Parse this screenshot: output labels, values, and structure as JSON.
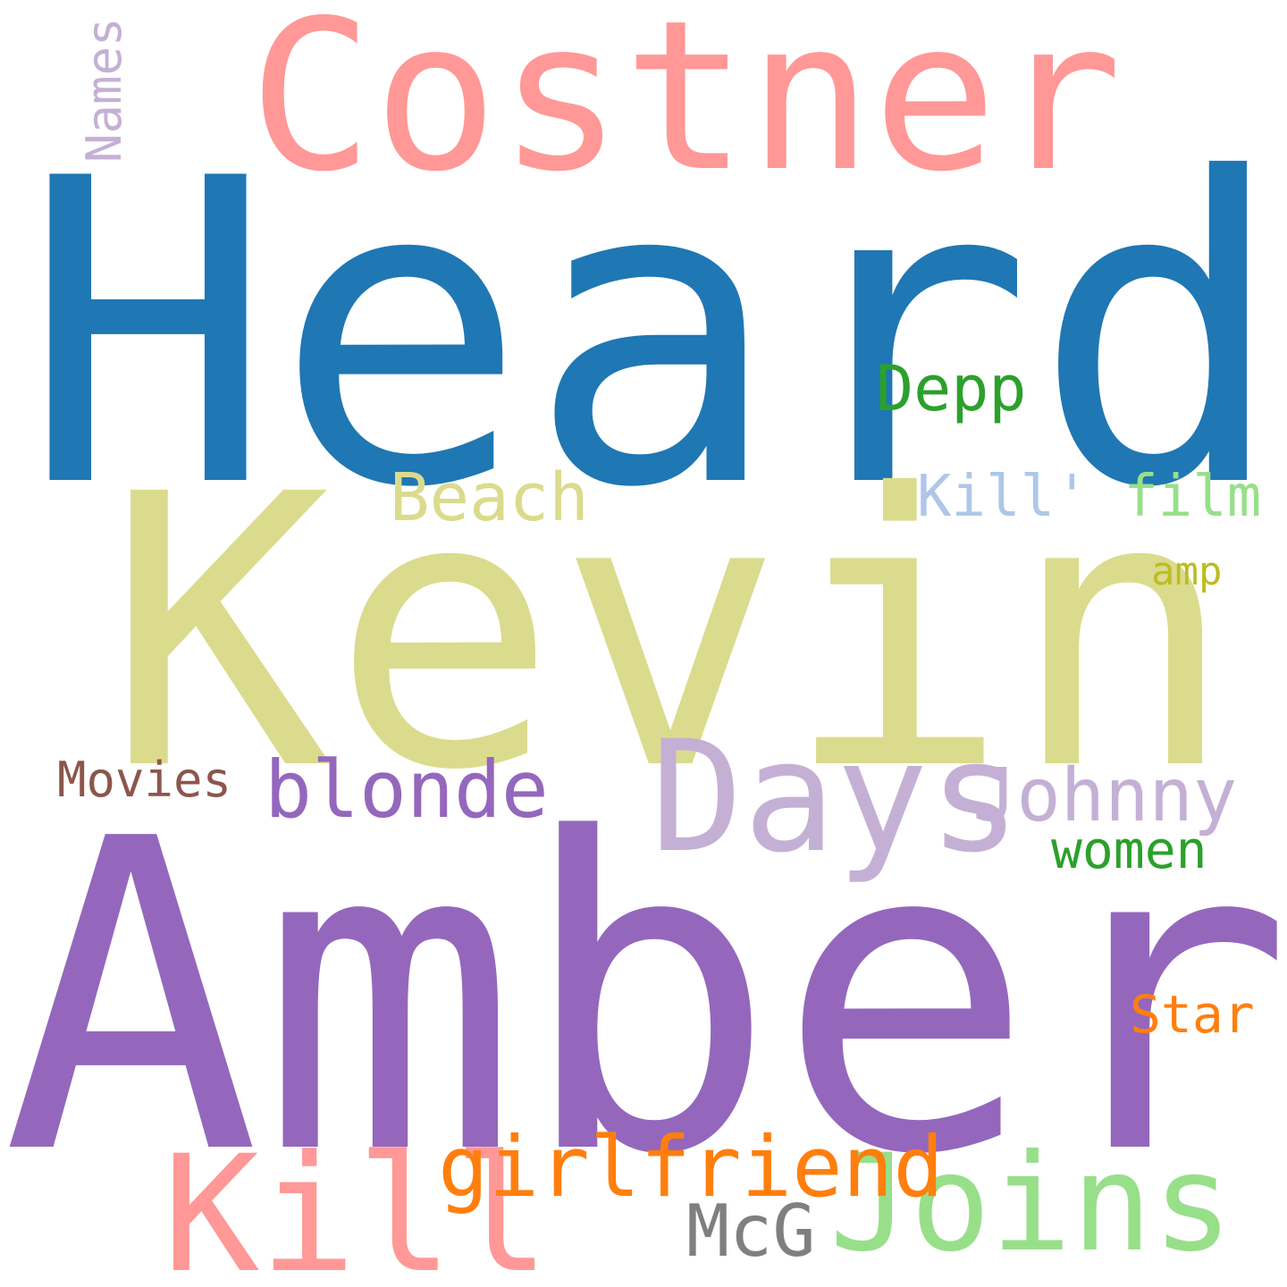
{
  "words": [
    {
      "key": "heard",
      "text": "Heard",
      "color": "#1f77b4"
    },
    {
      "key": "amber",
      "text": "Amber",
      "color": "#9467bd"
    },
    {
      "key": "kevin",
      "text": "Kevin",
      "color": "#dbdb8d"
    },
    {
      "key": "costner",
      "text": "Costner",
      "color": "#ff9896"
    },
    {
      "key": "days",
      "text": "Days",
      "color": "#c5b0d5"
    },
    {
      "key": "kill",
      "text": "Kill",
      "color": "#ff9896"
    },
    {
      "key": "joins",
      "text": "Joins",
      "color": "#98df8a"
    },
    {
      "key": "girlfriend",
      "text": "girlfriend",
      "color": "#ff7f0e"
    },
    {
      "key": "blonde",
      "text": "blonde",
      "color": "#9467bd"
    },
    {
      "key": "johnny",
      "text": "Johnny",
      "color": "#c5b0d5"
    },
    {
      "key": "beach",
      "text": "Beach",
      "color": "#dbdb8d"
    },
    {
      "key": "kill_film",
      "text": "Kill' film",
      "color_a": "#aec7e8",
      "color_b": "#98df8a",
      "part_a": "Kill'",
      "part_b": " film"
    },
    {
      "key": "depp",
      "text": "Depp",
      "color": "#2ca02c"
    },
    {
      "key": "mcg",
      "text": "McG",
      "color": "#7f7f7f"
    },
    {
      "key": "star",
      "text": "Star",
      "color": "#ff7f0e"
    },
    {
      "key": "women",
      "text": "women",
      "color": "#2ca02c"
    },
    {
      "key": "movies",
      "text": "Movies",
      "color": "#8c564b"
    },
    {
      "key": "names",
      "text": "Names",
      "color": "#c5b0d5"
    },
    {
      "key": "amp",
      "text": "amp",
      "color": "#bcbd22"
    }
  ]
}
